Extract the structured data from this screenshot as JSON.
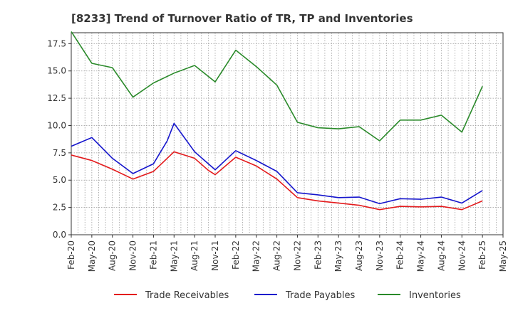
{
  "chart_data": {
    "type": "line",
    "title": "[8233]  Trend of Turnover Ratio of TR, TP and Inventories",
    "xlabel": "",
    "ylabel": "",
    "ylim": [
      0,
      18.5
    ],
    "yticks": [
      "0.0",
      "2.5",
      "5.0",
      "7.5",
      "10.0",
      "12.5",
      "15.0",
      "17.5"
    ],
    "ytick_values": [
      0,
      2.5,
      5,
      7.5,
      10,
      12.5,
      15,
      17.5
    ],
    "categories": [
      "Feb-20",
      "Mar-20",
      "Apr-20",
      "May-20",
      "Jun-20",
      "Jul-20",
      "Aug-20",
      "Sep-20",
      "Oct-20",
      "Nov-20",
      "Dec-20",
      "Jan-21",
      "Feb-21",
      "Mar-21",
      "Apr-21",
      "May-21",
      "Jun-21",
      "Jul-21",
      "Aug-21",
      "Sep-21",
      "Oct-21",
      "Nov-21",
      "Dec-21",
      "Jan-22",
      "Feb-22",
      "Mar-22",
      "Apr-22",
      "May-22",
      "Jun-22",
      "Jul-22",
      "Aug-22",
      "Sep-22",
      "Oct-22",
      "Nov-22",
      "Dec-22",
      "Jan-23",
      "Feb-23",
      "Mar-23",
      "Apr-23",
      "May-23",
      "Jun-23",
      "Jul-23",
      "Aug-23",
      "Sep-23",
      "Oct-23",
      "Nov-23",
      "Dec-23",
      "Jan-24",
      "Feb-24",
      "Mar-24",
      "Apr-24",
      "May-24",
      "Jun-24",
      "Jul-24",
      "Aug-24",
      "Sep-24",
      "Oct-24",
      "Nov-24",
      "Dec-24",
      "Jan-25",
      "Feb-25",
      "Mar-25",
      "Apr-25",
      "May-25"
    ],
    "xtick_labels": [
      "Feb-20",
      "May-20",
      "Aug-20",
      "Nov-20",
      "Feb-21",
      "May-21",
      "Aug-21",
      "Nov-21",
      "Feb-22",
      "May-22",
      "Aug-22",
      "Nov-22",
      "Feb-23",
      "May-23",
      "Aug-23",
      "Nov-23",
      "Feb-24",
      "May-24",
      "Aug-24",
      "Nov-24",
      "Feb-25",
      "May-25"
    ],
    "grid": true,
    "legend_position": "bottom",
    "series": [
      {
        "name": "Trade Receivables",
        "color": "#e31a1c",
        "x": [
          "Feb-20",
          "May-20",
          "Aug-20",
          "Nov-20",
          "Feb-21",
          "Apr-21",
          "May-21",
          "Aug-21",
          "Oct-21",
          "Nov-21",
          "Feb-22",
          "May-22",
          "Aug-22",
          "Nov-22",
          "Feb-23",
          "May-23",
          "Aug-23",
          "Nov-23",
          "Feb-24",
          "May-24",
          "Aug-24",
          "Nov-24",
          "Feb-25"
        ],
        "values": [
          7.3,
          6.8,
          6.0,
          5.1,
          5.8,
          7.0,
          7.6,
          7.0,
          5.9,
          5.5,
          7.1,
          6.3,
          5.1,
          3.4,
          3.1,
          2.9,
          2.7,
          2.3,
          2.6,
          2.55,
          2.6,
          2.3,
          3.1
        ]
      },
      {
        "name": "Trade Payables",
        "color": "#1515cc",
        "x": [
          "Feb-20",
          "May-20",
          "Aug-20",
          "Nov-20",
          "Feb-21",
          "Apr-21",
          "May-21",
          "Aug-21",
          "Oct-21",
          "Nov-21",
          "Feb-22",
          "May-22",
          "Aug-22",
          "Nov-22",
          "Feb-23",
          "May-23",
          "Aug-23",
          "Nov-23",
          "Feb-24",
          "May-24",
          "Aug-24",
          "Nov-24",
          "Feb-25"
        ],
        "values": [
          8.1,
          8.9,
          7.0,
          5.6,
          6.5,
          8.6,
          10.2,
          7.6,
          6.5,
          5.95,
          7.7,
          6.8,
          5.8,
          3.85,
          3.65,
          3.4,
          3.45,
          2.85,
          3.3,
          3.25,
          3.45,
          2.9,
          4.05
        ]
      },
      {
        "name": "Inventories",
        "color": "#2a8a2a",
        "x": [
          "Feb-20",
          "May-20",
          "Aug-20",
          "Nov-20",
          "Feb-21",
          "May-21",
          "Aug-21",
          "Nov-21",
          "Feb-22",
          "May-22",
          "Aug-22",
          "Nov-22",
          "Feb-23",
          "May-23",
          "Aug-23",
          "Nov-23",
          "Feb-24",
          "May-24",
          "Aug-24",
          "Nov-24",
          "Feb-25"
        ],
        "values": [
          18.6,
          15.7,
          15.3,
          12.6,
          13.9,
          14.8,
          15.5,
          14.0,
          16.9,
          15.4,
          13.7,
          10.3,
          9.8,
          9.7,
          9.9,
          8.6,
          10.5,
          10.5,
          10.95,
          9.4,
          13.6
        ]
      }
    ]
  }
}
